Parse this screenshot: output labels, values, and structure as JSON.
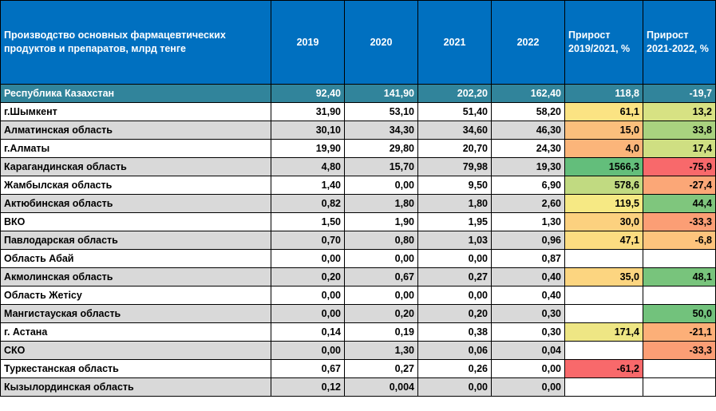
{
  "header": {
    "title": "Производство основных фармацевтических продуктов и препаратов, млрд тенге",
    "years": [
      "2019",
      "2020",
      "2021",
      "2022"
    ],
    "growth_2019_2021": "Прирост 2019/2021, %",
    "growth_2021_2022": "Прирост 2021-2022, %"
  },
  "rows": [
    {
      "region": "Республика Казахстан",
      "v2019": "92,40",
      "v2020": "141,90",
      "v2021": "202,20",
      "v2022": "162,40",
      "g1": "118,8",
      "g2": "-19,7",
      "g1_color": "",
      "g2_color": ""
    },
    {
      "region": " г.Шымкент",
      "v2019": "31,90",
      "v2020": "53,10",
      "v2021": "51,40",
      "v2022": "58,20",
      "g1": "61,1",
      "g2": "13,2",
      "g1_color": "#fbe383",
      "g2_color": "#d7e283"
    },
    {
      "region": "Алматинская область",
      "v2019": "30,10",
      "v2020": "34,30",
      "v2021": "34,60",
      "v2022": "46,30",
      "g1": "15,0",
      "g2": "33,8",
      "g1_color": "#fbbf7c",
      "g2_color": "#a9d27f"
    },
    {
      "region": "г.Алматы",
      "v2019": "19,90",
      "v2020": "29,80",
      "v2021": "20,70",
      "v2022": "24,30",
      "g1": "4,0",
      "g2": "17,4",
      "g1_color": "#fbb57a",
      "g2_color": "#cfdf82"
    },
    {
      "region": "Карагандинская область",
      "v2019": "4,80",
      "v2020": "15,70",
      "v2021": "79,98",
      "v2022": "19,30",
      "g1": "1566,3",
      "g2": "-75,9",
      "g1_color": "#63be7b",
      "g2_color": "#f8696b"
    },
    {
      "region": "Жамбылская область",
      "v2019": "1,40",
      "v2020": "0,00",
      "v2021": "9,50",
      "v2022": "6,90",
      "g1": "578,6",
      "g2": "-27,4",
      "g1_color": "#c1da81",
      "g2_color": "#fba777"
    },
    {
      "region": "Актюбинская область",
      "v2019": "0,82",
      "v2020": "1,80",
      "v2021": "1,80",
      "v2022": "2,60",
      "g1": "119,5",
      "g2": "44,4",
      "g1_color": "#f6e984",
      "g2_color": "#7fc67d"
    },
    {
      "region": "ВКО",
      "v2019": "1,50",
      "v2020": "1,90",
      "v2021": "1,95",
      "v2022": "1,30",
      "g1": "30,0",
      "g2": "-33,3",
      "g1_color": "#fcd17f",
      "g2_color": "#fb9e75"
    },
    {
      "region": "Павлодарская область",
      "v2019": "0,70",
      "v2020": "0,80",
      "v2021": "1,03",
      "v2022": "0,96",
      "g1": "47,1",
      "g2": "-6,8",
      "g1_color": "#fcdc81",
      "g2_color": "#fdc47d"
    },
    {
      "region": "Область Абай",
      "v2019": "0,00",
      "v2020": "0,00",
      "v2021": "0,00",
      "v2022": "0,87",
      "g1": "",
      "g2": "",
      "g1_color": "",
      "g2_color": ""
    },
    {
      "region": "Акмолинская область",
      "v2019": "0,20",
      "v2020": "0,67",
      "v2021": "0,27",
      "v2022": "0,40",
      "g1": "35,0",
      "g2": "48,1",
      "g1_color": "#fcd580",
      "g2_color": "#78c47c"
    },
    {
      "region": "Область Жетісу",
      "v2019": "0,00",
      "v2020": "0,00",
      "v2021": "0,00",
      "v2022": "0,40",
      "g1": "",
      "g2": "",
      "g1_color": "",
      "g2_color": ""
    },
    {
      "region": "Мангистауская область",
      "v2019": "0,00",
      "v2020": "0,20",
      "v2021": "0,20",
      "v2022": "0,30",
      "g1": "",
      "g2": "50,0",
      "g1_color": "",
      "g2_color": "#72c27c"
    },
    {
      "region": "г. Астана",
      "v2019": "0,14",
      "v2020": "0,19",
      "v2021": "0,38",
      "v2022": "0,30",
      "g1": "171,4",
      "g2": "-21,1",
      "g1_color": "#eee684",
      "g2_color": "#fcaf78"
    },
    {
      "region": "СКО",
      "v2019": "0,00",
      "v2020": "1,30",
      "v2021": "0,06",
      "v2022": "0,04",
      "g1": "",
      "g2": "-33,3",
      "g1_color": "",
      "g2_color": "#fb9e75"
    },
    {
      "region": " Туркестанская область",
      "v2019": "0,67",
      "v2020": "0,27",
      "v2021": "0,26",
      "v2022": "0,00",
      "g1": "-61,2",
      "g2": "",
      "g1_color": "#f8696b",
      "g2_color": ""
    },
    {
      "region": "Кызылординская область",
      "v2019": "0,12",
      "v2020": "0,004",
      "v2021": "0,00",
      "v2022": "0,00",
      "g1": "",
      "g2": "",
      "g1_color": "",
      "g2_color": ""
    }
  ]
}
